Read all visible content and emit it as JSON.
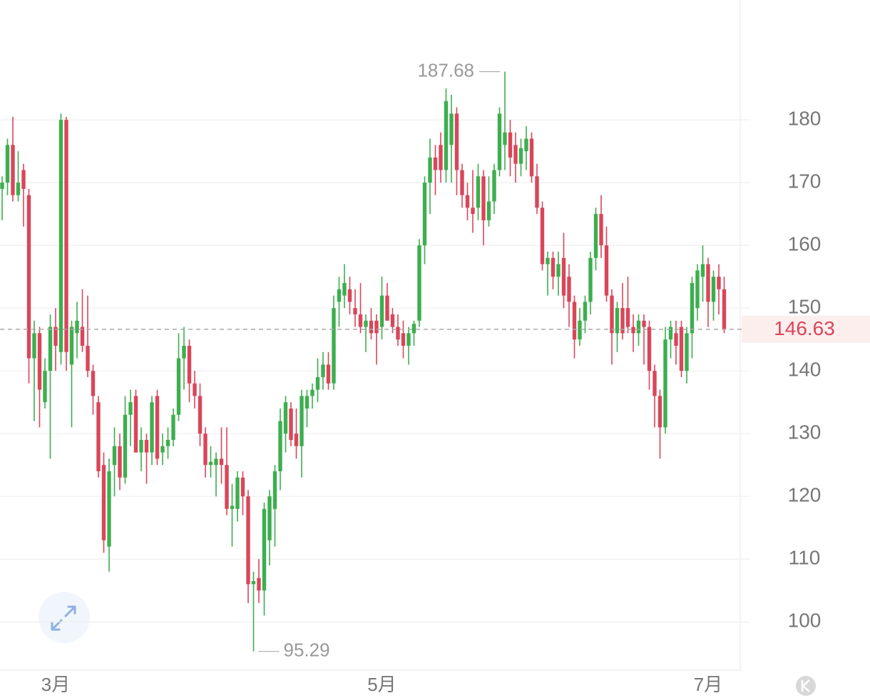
{
  "chart_data": {
    "type": "candlestick",
    "categories": [
      null,
      null,
      null,
      null,
      null,
      null,
      null,
      null,
      null,
      null,
      "3月",
      null,
      null,
      null,
      null,
      null,
      null,
      null,
      null,
      null,
      null,
      null,
      null,
      null,
      null,
      null,
      null,
      null,
      null,
      null,
      null,
      null,
      null,
      null,
      null,
      null,
      null,
      null,
      null,
      null,
      null,
      null,
      null,
      null,
      null,
      null,
      null,
      null,
      null,
      null,
      null,
      null,
      null,
      null,
      null,
      null,
      null,
      null,
      null,
      null,
      null,
      null,
      null,
      null,
      null,
      null,
      null,
      null,
      null,
      null,
      null,
      "5月",
      null,
      null,
      null,
      null,
      null,
      null,
      null,
      null,
      null,
      null,
      null,
      null,
      null,
      null,
      null,
      null,
      null,
      null,
      null,
      null,
      null,
      null,
      null,
      null,
      null,
      null,
      null,
      null,
      null,
      null,
      null,
      null,
      null,
      null,
      null,
      null,
      null,
      null,
      null,
      null,
      null,
      null,
      null,
      null,
      null,
      null,
      null,
      null,
      null,
      null,
      null,
      null,
      null,
      null,
      null,
      null,
      null,
      null,
      null,
      null,
      "7月",
      null,
      null,
      null
    ],
    "open": [
      169,
      170,
      176,
      168,
      172,
      168,
      142,
      146,
      135,
      140,
      147,
      143,
      180,
      141,
      146,
      147,
      144,
      140,
      135,
      125,
      112,
      125,
      128,
      123,
      133,
      136,
      127,
      129,
      127,
      136,
      127,
      128,
      129,
      133,
      142,
      144,
      138,
      136,
      130,
      125,
      125,
      126,
      125,
      118,
      118,
      123,
      120,
      106,
      107,
      105,
      113,
      118,
      124,
      130,
      134,
      130,
      128,
      134,
      136,
      137,
      139,
      141,
      138,
      151,
      152,
      153,
      150,
      149,
      147,
      148,
      148,
      147,
      152,
      149,
      147,
      146,
      144,
      146,
      148,
      160,
      170,
      174,
      176,
      172,
      176,
      181,
      172,
      168,
      166,
      166,
      171,
      164,
      167,
      172,
      176,
      178,
      176,
      173,
      175,
      177,
      171,
      166,
      157,
      158,
      155,
      158,
      155,
      151,
      145,
      148,
      151,
      158,
      165,
      160,
      152,
      146,
      150,
      150,
      147,
      146,
      148,
      147,
      140,
      136,
      131,
      145,
      146,
      147,
      140,
      146,
      150,
      155,
      157,
      151,
      155,
      153
    ],
    "high": [
      171,
      177,
      180.5,
      175,
      173,
      169,
      148,
      147,
      142,
      149,
      150,
      181,
      180.5,
      148,
      151,
      153,
      152,
      141,
      136,
      127,
      126,
      131,
      130,
      136,
      137,
      137,
      131,
      130,
      136,
      137,
      130,
      131,
      134,
      146,
      147,
      145,
      140,
      138,
      131,
      128,
      127,
      131,
      131,
      122,
      124,
      124,
      121,
      108,
      110,
      119,
      121,
      125,
      134,
      136,
      135,
      134,
      137,
      137,
      138,
      142,
      143,
      143,
      152,
      155,
      157,
      155,
      153,
      154,
      149,
      150,
      149,
      155,
      154,
      150,
      149,
      148,
      147,
      148,
      161,
      171,
      177,
      176,
      178,
      185,
      184,
      182,
      173,
      170,
      172,
      173,
      172,
      171,
      173,
      182,
      187.68,
      180,
      178,
      177,
      179,
      178,
      173,
      167,
      159,
      159,
      159,
      162,
      157,
      152,
      150,
      152,
      159,
      166,
      168,
      163,
      153,
      151,
      154,
      155,
      149,
      149,
      149,
      148,
      141,
      137,
      147,
      148,
      148,
      148,
      147,
      155,
      157,
      160,
      158,
      156,
      157,
      155
    ],
    "low": [
      164,
      168,
      167,
      167,
      163,
      138,
      132,
      131,
      134,
      126,
      140,
      141,
      140,
      131,
      142,
      143,
      139,
      133,
      123,
      111,
      108,
      120,
      121,
      122,
      128,
      127,
      124,
      122,
      125,
      125,
      125,
      126,
      128,
      132,
      137,
      135,
      134,
      128,
      123,
      123,
      120,
      122,
      117,
      112,
      116,
      117,
      103,
      95.29,
      103,
      101,
      109,
      112,
      121,
      127,
      128,
      126,
      123,
      131,
      134,
      135,
      137,
      137,
      137,
      147,
      150,
      149,
      147,
      146,
      143,
      145,
      141,
      145,
      148,
      146,
      144,
      142,
      141,
      144,
      147,
      157,
      165,
      168,
      170,
      170,
      170,
      168,
      166,
      164,
      162,
      164,
      160,
      163,
      165,
      171,
      172,
      171,
      170,
      171,
      172,
      170,
      165,
      156,
      152,
      153,
      152,
      150,
      147,
      142,
      144,
      146,
      149,
      156,
      158,
      151,
      141,
      143,
      145,
      146,
      143,
      144,
      141,
      137,
      131,
      126,
      130,
      142,
      141,
      139,
      138,
      142,
      148,
      151,
      147,
      148,
      149,
      146
    ],
    "close": [
      170,
      176,
      168,
      170,
      169,
      142,
      146,
      137,
      140,
      147,
      144,
      180,
      143,
      147,
      148,
      144,
      140,
      136,
      124,
      113,
      124,
      128,
      123,
      133,
      135,
      127,
      129,
      127,
      135,
      126,
      128,
      129,
      133,
      142,
      144,
      138,
      136,
      130,
      125,
      125.5,
      126,
      125,
      118,
      118.5,
      123,
      120,
      106,
      106.5,
      105,
      118,
      120,
      124,
      132,
      135,
      129,
      128,
      136,
      136,
      137,
      139,
      141,
      138,
      150,
      153,
      154,
      151,
      149,
      147,
      148,
      146,
      146,
      152,
      148,
      147,
      145,
      144,
      146,
      147.5,
      160,
      170,
      174,
      172,
      172,
      183,
      181,
      172,
      168,
      166,
      165,
      171,
      164,
      167,
      172,
      181,
      178,
      174,
      173,
      175.5,
      177,
      171,
      166,
      157,
      158,
      155,
      157,
      152,
      151,
      145,
      148,
      151,
      158,
      165,
      160,
      152,
      146,
      150,
      146,
      147,
      146,
      148,
      147,
      140,
      136,
      131,
      145,
      147,
      144,
      140,
      146,
      154,
      156,
      157,
      151,
      155,
      153,
      146.63
    ],
    "up_color": "#3dae4f",
    "down_color": "#d9465a",
    "ylim": [
      92.3,
      199.1
    ],
    "yticks": [
      100,
      110,
      120,
      130,
      140,
      150,
      160,
      170,
      180
    ],
    "grid": true
  }
}
